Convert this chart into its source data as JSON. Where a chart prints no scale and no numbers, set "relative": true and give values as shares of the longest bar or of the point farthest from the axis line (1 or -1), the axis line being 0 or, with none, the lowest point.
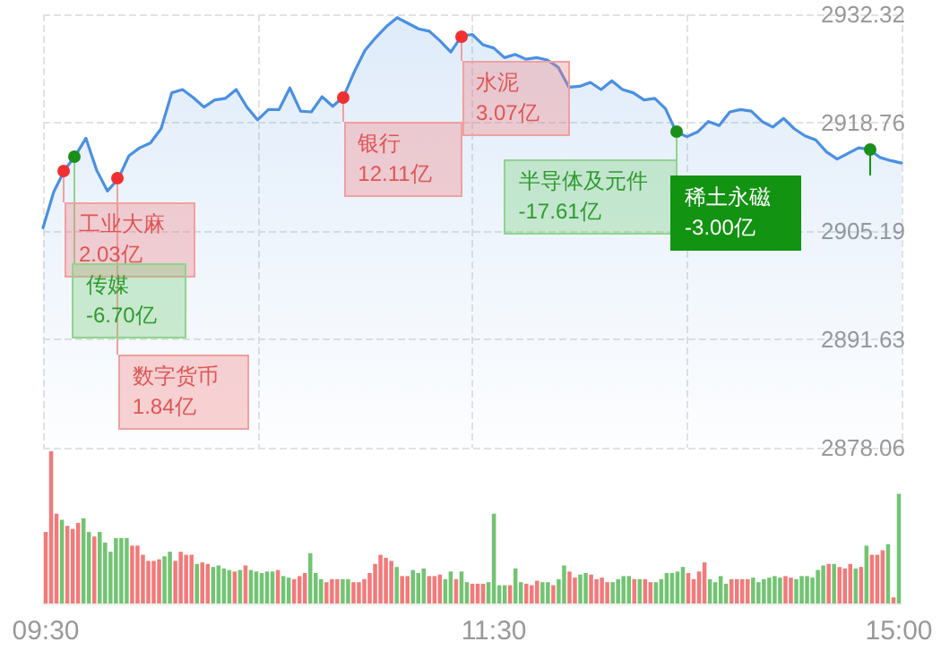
{
  "chart_data": [
    {
      "type": "area",
      "color": "#4a90e2",
      "grid": true,
      "line_style": "solid",
      "tick_labels": "y",
      "categories": [
        null,
        null,
        null,
        null,
        null,
        null,
        null,
        null,
        null,
        null,
        null,
        null,
        null,
        null,
        null,
        null,
        null,
        null,
        null,
        null,
        null,
        null,
        null,
        null,
        null,
        null,
        null,
        null,
        null,
        null,
        null,
        null,
        null,
        null,
        null,
        null,
        null,
        null,
        null,
        null,
        null,
        null,
        null,
        null,
        null,
        null,
        null,
        null,
        null,
        null,
        null,
        null,
        null,
        null,
        null,
        null,
        null,
        null,
        null,
        null,
        null,
        null,
        null,
        null,
        null,
        null,
        null,
        null,
        null,
        null,
        null,
        null,
        null,
        null,
        null,
        null,
        null,
        null,
        null,
        null,
        null
      ],
      "values": [
        2905.6,
        2910.1,
        2912.8,
        2914.6,
        2916.8,
        2912.8,
        2910.2,
        2911.7,
        2914.6,
        2915.6,
        2916.2,
        2918.0,
        2922.5,
        2922.9,
        2921.9,
        2920.7,
        2921.6,
        2921.8,
        2922.9,
        2920.7,
        2919.1,
        2920.4,
        2920.4,
        2923.1,
        2920.2,
        2920.1,
        2922.0,
        2920.8,
        2922.0,
        2925.1,
        2927.8,
        2929.4,
        2930.8,
        2931.9,
        2931.2,
        2930.5,
        2930.2,
        2929.0,
        2927.6,
        2929.6,
        2929.8,
        2928.5,
        2928.1,
        2926.9,
        2927.3,
        2926.7,
        2926.9,
        2926.6,
        2925.7,
        2923.2,
        2923.3,
        2923.8,
        2922.9,
        2924.0,
        2922.9,
        2922.5,
        2921.6,
        2921.8,
        2920.5,
        2917.6,
        2917.0,
        2917.6,
        2918.9,
        2918.4,
        2920.1,
        2920.4,
        2920.2,
        2918.9,
        2918.2,
        2919.3,
        2918.0,
        2917.1,
        2916.6,
        2915.1,
        2914.2,
        2914.9,
        2915.6,
        2915.4,
        2914.4,
        2914.0,
        2913.7
      ],
      "ylim": [
        2878.06,
        2932.32
      ],
      "yticks": [
        2878.06,
        {
          "value": 2891.625,
          "label": "2891.63"
        },
        2905.19,
        {
          "value": 2918.755,
          "label": "2918.76"
        },
        2932.32
      ],
      "annotations": [
        "工业大麻\n2.03亿",
        "传媒\n-6.70亿",
        "数字货币\n1.84亿",
        "银行\n12.11亿",
        "水泥\n3.07亿",
        "半导体及元件\n-17.61亿",
        "稀土永磁\n-3.00亿"
      ]
    },
    {
      "type": "bar",
      "relative": true,
      "categories": [
        "09:30",
        null,
        null,
        null,
        null,
        null,
        null,
        null,
        null,
        null,
        null,
        null,
        null,
        null,
        null,
        null,
        null,
        null,
        null,
        null,
        null,
        null,
        null,
        null,
        null,
        null,
        null,
        null,
        null,
        null,
        null,
        null,
        null,
        null,
        null,
        null,
        null,
        null,
        null,
        null,
        null,
        null,
        null,
        null,
        null,
        null,
        null,
        null,
        null,
        null,
        null,
        null,
        null,
        null,
        null,
        null,
        null,
        null,
        null,
        null,
        null,
        null,
        null,
        null,
        null,
        null,
        null,
        null,
        null,
        null,
        null,
        null,
        null,
        null,
        null,
        null,
        null,
        null,
        null,
        null,
        null,
        null,
        null,
        "11:30",
        null,
        null,
        null,
        null,
        null,
        null,
        null,
        null,
        null,
        null,
        null,
        null,
        null,
        null,
        null,
        null,
        null,
        null,
        null,
        null,
        null,
        null,
        null,
        null,
        null,
        null,
        null,
        null,
        null,
        null,
        null,
        null,
        null,
        null,
        null,
        null,
        null,
        null,
        null,
        null,
        null,
        null,
        null,
        null,
        null,
        null,
        null,
        null,
        null,
        null,
        null,
        null,
        null,
        null,
        null,
        null,
        null,
        null,
        null,
        null,
        null,
        null,
        null,
        null,
        null,
        null,
        null,
        null,
        null,
        null,
        null,
        null,
        null,
        null,
        "15:00"
      ],
      "values": [
        0.47,
        1.0,
        0.59,
        0.55,
        0.51,
        0.49,
        0.53,
        0.56,
        0.47,
        0.44,
        0.47,
        0.4,
        0.34,
        0.43,
        0.43,
        0.43,
        0.38,
        0.38,
        0.32,
        0.28,
        0.28,
        0.29,
        0.31,
        0.34,
        0.28,
        0.34,
        0.32,
        0.32,
        0.26,
        0.27,
        0.26,
        0.24,
        0.25,
        0.23,
        0.22,
        0.21,
        0.22,
        0.25,
        0.22,
        0.21,
        0.2,
        0.21,
        0.21,
        0.22,
        0.18,
        0.17,
        0.16,
        0.18,
        0.2,
        0.33,
        0.2,
        0.16,
        0.14,
        0.16,
        0.16,
        0.16,
        0.16,
        0.14,
        0.14,
        0.16,
        0.2,
        0.26,
        0.32,
        0.3,
        0.28,
        0.24,
        0.18,
        0.18,
        0.22,
        0.2,
        0.23,
        0.18,
        0.18,
        0.19,
        0.16,
        0.21,
        0.16,
        0.21,
        0.14,
        0.13,
        0.13,
        0.13,
        0.14,
        0.59,
        0.12,
        0.12,
        0.12,
        0.23,
        0.14,
        0.13,
        0.12,
        0.15,
        0.14,
        0.14,
        0.12,
        0.16,
        0.25,
        0.21,
        0.17,
        0.19,
        0.2,
        0.19,
        0.16,
        0.17,
        0.14,
        0.14,
        0.16,
        0.18,
        0.18,
        0.16,
        0.16,
        0.16,
        0.14,
        0.14,
        0.16,
        0.2,
        0.2,
        0.21,
        0.24,
        0.2,
        0.16,
        0.21,
        0.27,
        0.16,
        0.14,
        0.18,
        0.13,
        0.16,
        0.16,
        0.16,
        0.16,
        0.17,
        0.14,
        0.16,
        0.17,
        0.18,
        0.17,
        0.18,
        0.17,
        0.16,
        0.18,
        0.18,
        0.17,
        0.22,
        0.25,
        0.26,
        0.26,
        0.24,
        0.23,
        0.26,
        0.23,
        0.24,
        0.38,
        0.32,
        0.32,
        0.35,
        0.39,
        0.04,
        0.72
      ],
      "colors": [
        "#f27a7a",
        "#f27a7a",
        "#f27a7a",
        "#72c472",
        "#f27a7a",
        "#f27a7a",
        "#f27a7a",
        "#72c472",
        "#72c472",
        "#f27a7a",
        "#72c472",
        "#72c472",
        "#72c472",
        "#72c472",
        "#72c472",
        "#72c472",
        "#f27a7a",
        "#f27a7a",
        "#f27a7a",
        "#f27a7a",
        "#f27a7a",
        "#f27a7a",
        "#72c472",
        "#72c472",
        "#f27a7a",
        "#f27a7a",
        "#f27a7a",
        "#f27a7a",
        "#72c472",
        "#f27a7a",
        "#f27a7a",
        "#72c472",
        "#72c472",
        "#72c472",
        "#72c472",
        "#f27a7a",
        "#72c472",
        "#f27a7a",
        "#72c472",
        "#72c472",
        "#72c472",
        "#72c472",
        "#72c472",
        "#f27a7a",
        "#72c472",
        "#72c472",
        "#f27a7a",
        "#f27a7a",
        "#f27a7a",
        "#72c472",
        "#72c472",
        "#72c472",
        "#f27a7a",
        "#f27a7a",
        "#f27a7a",
        "#72c472",
        "#72c472",
        "#f27a7a",
        "#f27a7a",
        "#f27a7a",
        "#f27a7a",
        "#f27a7a",
        "#f27a7a",
        "#f27a7a",
        "#f27a7a",
        "#72c472",
        "#f27a7a",
        "#f27a7a",
        "#72c472",
        "#72c472",
        "#72c472",
        "#f27a7a",
        "#f27a7a",
        "#f27a7a",
        "#72c472",
        "#72c472",
        "#f27a7a",
        "#72c472",
        "#72c472",
        "#f27a7a",
        "#f27a7a",
        "#f27a7a",
        "#72c472",
        "#72c472",
        "#72c472",
        "#72c472",
        "#f27a7a",
        "#72c472",
        "#72c472",
        "#f27a7a",
        "#f27a7a",
        "#f27a7a",
        "#72c472",
        "#72c472",
        "#f27a7a",
        "#72c472",
        "#72c472",
        "#f27a7a",
        "#f27a7a",
        "#72c472",
        "#72c472",
        "#f27a7a",
        "#f27a7a",
        "#f27a7a",
        "#f27a7a",
        "#72c472",
        "#72c472",
        "#72c472",
        "#72c472",
        "#f27a7a",
        "#72c472",
        "#f27a7a",
        "#f27a7a",
        "#72c472",
        "#72c472",
        "#72c472",
        "#72c472",
        "#72c472",
        "#72c472",
        "#f27a7a",
        "#f27a7a",
        "#f27a7a",
        "#f27a7a",
        "#72c472",
        "#72c472",
        "#72c472",
        "#72c472",
        "#f27a7a",
        "#f27a7a",
        "#f27a7a",
        "#f27a7a",
        "#72c472",
        "#72c472",
        "#72c472",
        "#72c472",
        "#72c472",
        "#72c472",
        "#f27a7a",
        "#f27a7a",
        "#72c472",
        "#72c472",
        "#72c472",
        "#72c472",
        "#72c472",
        "#72c472",
        "#f27a7a",
        "#72c472",
        "#f27a7a",
        "#f27a7a",
        "#f27a7a",
        "#72c472",
        "#f27a7a",
        "#72c472",
        "#f27a7a",
        "#f27a7a",
        "#f27a7a",
        "#72c472",
        "#f27a7a",
        "#72c472"
      ]
    }
  ]
}
